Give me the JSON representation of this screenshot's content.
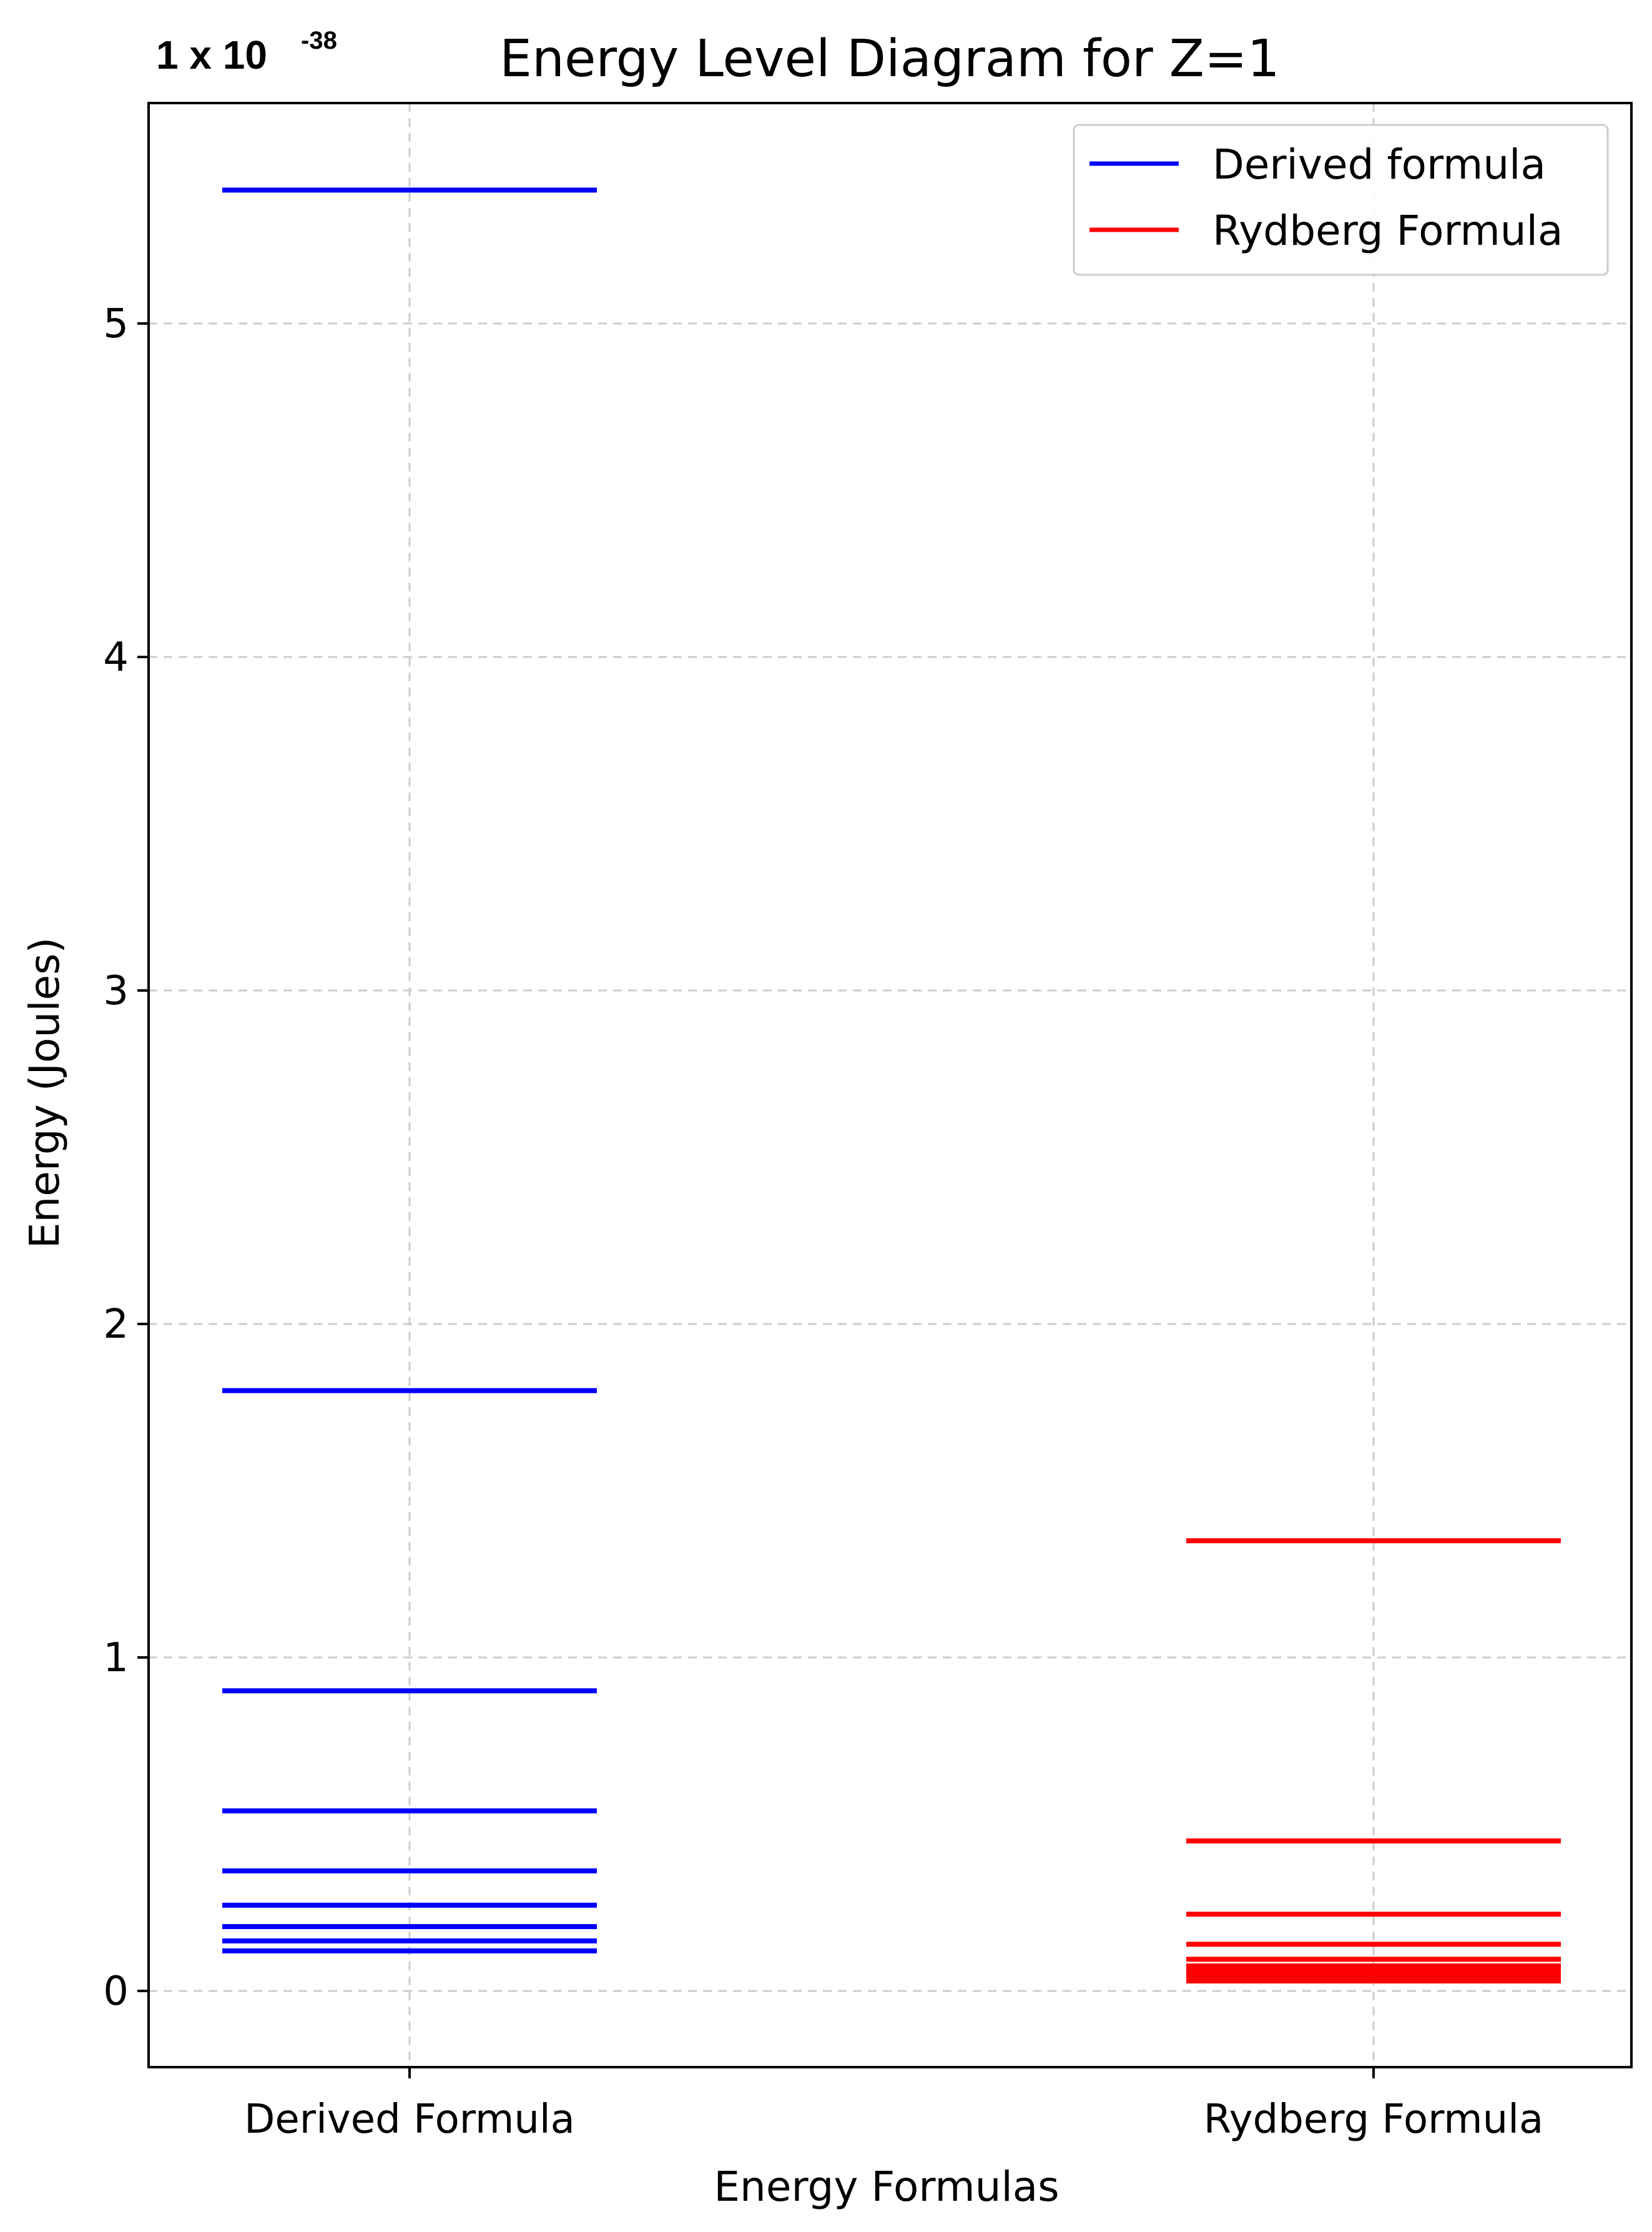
{
  "chart_data": {
    "type": "line",
    "title": "Energy Level Diagram for Z=1",
    "xlabel": "Energy Formulas",
    "ylabel": "Energy (Joules)",
    "scale_factor": {
      "base": "1 x 10",
      "exponent": "-38"
    },
    "categories": [
      "Derived Formula",
      "Rydberg Formula"
    ],
    "ylim": [
      -0.23,
      5.66
    ],
    "yticks": [
      0,
      1,
      2,
      3,
      4,
      5
    ],
    "grid": true,
    "legend_position": "top-right",
    "series": [
      {
        "name": "Derived formula",
        "category": "Derived Formula",
        "color": "#0000ff",
        "levels": [
          5.4,
          1.8,
          0.9,
          0.54,
          0.36,
          0.257,
          0.193,
          0.15,
          0.12
        ]
      },
      {
        "name": "Rydberg Formula",
        "category": "Rydberg Formula",
        "color": "#ff0000",
        "levels": [
          1.35,
          0.45,
          0.23,
          0.14,
          0.095,
          0.075,
          0.06,
          0.05,
          0.045,
          0.04,
          0.035,
          0.03
        ]
      }
    ],
    "colors": {
      "grid": "#cccccc",
      "axes": "#000000"
    }
  }
}
